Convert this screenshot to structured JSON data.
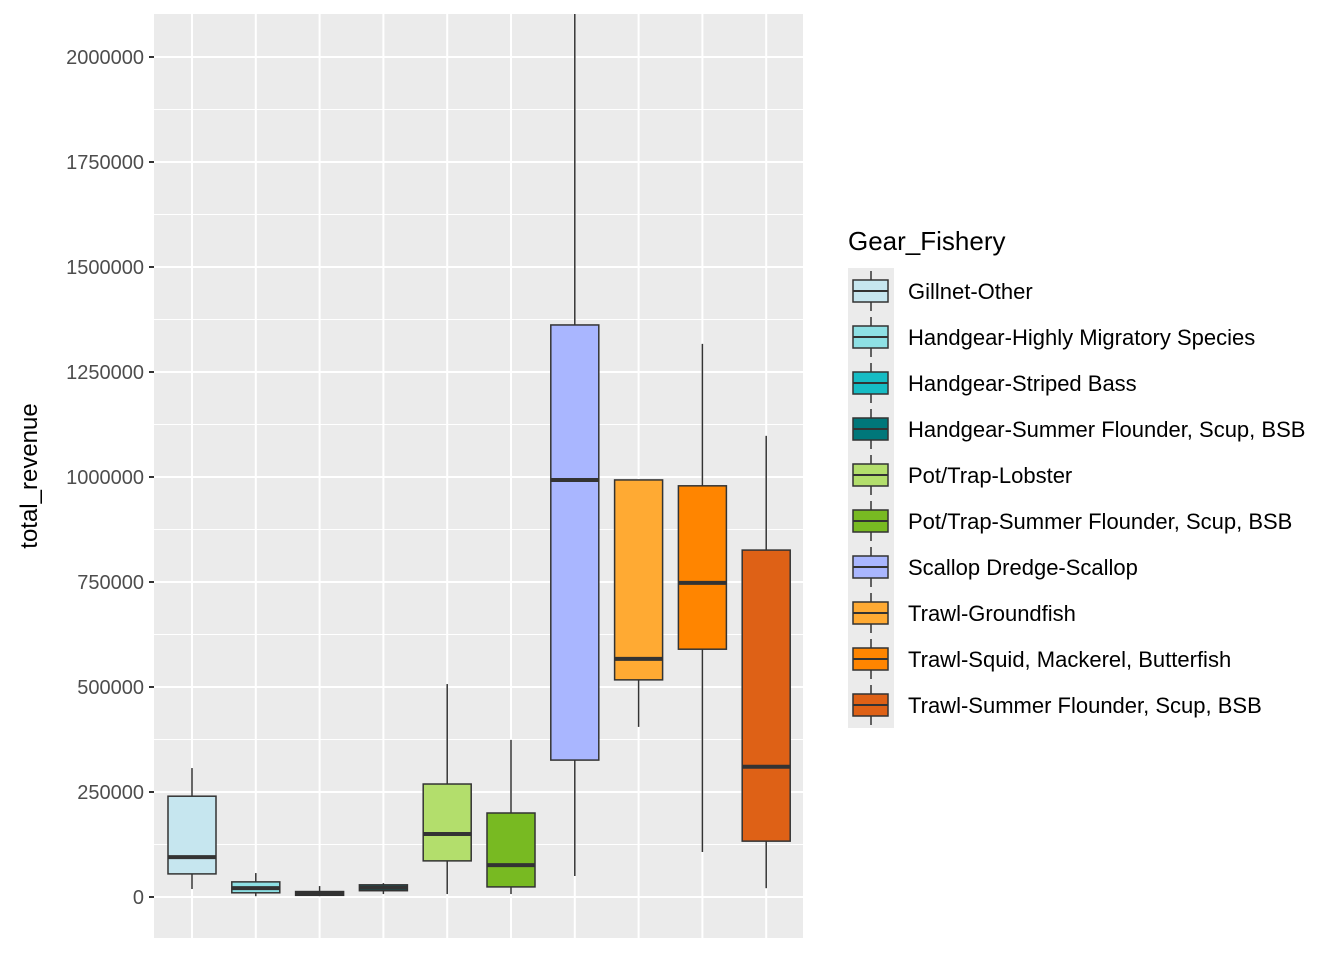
{
  "chart_data": {
    "type": "boxplot",
    "title": "",
    "xlabel": "",
    "ylabel": "total_revenue",
    "ylim": [
      -100000,
      2100000
    ],
    "yticks": [
      0,
      250000,
      500000,
      750000,
      1000000,
      1250000,
      1500000,
      1750000,
      2000000
    ],
    "ytick_labels": [
      "0",
      "250000",
      "500000",
      "750000",
      "1000000",
      "1250000",
      "1500000",
      "1750000",
      "2000000"
    ],
    "grid": true,
    "legend": {
      "title": "Gear_Fishery",
      "placement": "right"
    },
    "series": [
      {
        "name": "Gillnet-Other",
        "color": "#C6E6EF",
        "min": 19000,
        "q1": 55000,
        "median": 95000,
        "q3": 240000,
        "max": 307000
      },
      {
        "name": "Handgear-Highly Migratory Species",
        "color": "#8EE0E4",
        "min": 2000,
        "q1": 10000,
        "median": 21000,
        "q3": 36000,
        "max": 57000
      },
      {
        "name": "Handgear-Striped Bass",
        "color": "#16BCC4",
        "min": 2000,
        "q1": 4000,
        "median": 8000,
        "q3": 13000,
        "max": 26000
      },
      {
        "name": "Handgear-Summer Flounder, Scup, BSB",
        "color": "#00777A",
        "min": 7000,
        "q1": 15000,
        "median": 22000,
        "q3": 29000,
        "max": 33000
      },
      {
        "name": "Pot/Trap-Lobster",
        "color": "#B3DE6C",
        "min": 7000,
        "q1": 86000,
        "median": 150000,
        "q3": 269000,
        "max": 507000
      },
      {
        "name": "Pot/Trap-Summer Flounder, Scup, BSB",
        "color": "#78BA22",
        "min": 7000,
        "q1": 24000,
        "median": 76000,
        "q3": 200000,
        "max": 374000
      },
      {
        "name": "Scallop Dredge-Scallop",
        "color": "#A9B6FF",
        "min": 50000,
        "q1": 326000,
        "median": 993000,
        "q3": 1362000,
        "max": 2200000
      },
      {
        "name": "Trawl-Groundfish",
        "color": "#FFAA33",
        "min": 405000,
        "q1": 517000,
        "median": 567000,
        "q3": 993000,
        "max": 993000
      },
      {
        "name": "Trawl-Squid, Mackerel, Butterfish",
        "color": "#FF8500",
        "min": 107000,
        "q1": 590000,
        "median": 748000,
        "q3": 979000,
        "max": 1317000
      },
      {
        "name": "Trawl-Summer Flounder, Scup, BSB",
        "color": "#DE6116",
        "min": 21000,
        "q1": 133000,
        "median": 310000,
        "q3": 826000,
        "max": 1098000
      }
    ]
  }
}
